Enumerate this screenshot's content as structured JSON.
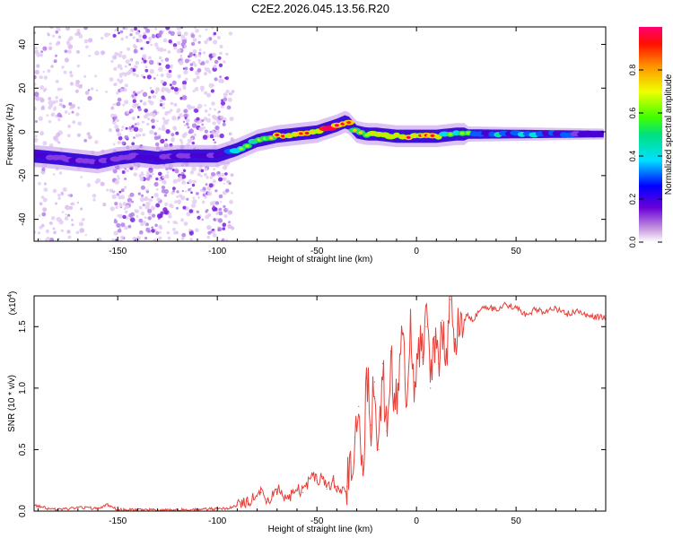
{
  "title": "C2E2.2026.045.13.56.R20",
  "chart_data": [
    {
      "type": "heatmap",
      "name": "spectrogram",
      "xlabel": "Height of straight line (km)",
      "ylabel": "Frequency (Hz)",
      "xlim": [
        -192,
        95
      ],
      "ylim": [
        -50,
        48
      ],
      "xticks": [
        -150,
        -100,
        -50,
        0,
        50
      ],
      "xtick_labels": [
        "-150",
        "-100",
        "-50",
        "0",
        "50"
      ],
      "yticks": [
        -40,
        -20,
        0,
        20,
        40
      ],
      "ytick_labels": [
        "-40",
        "-20",
        "0",
        "20",
        "40"
      ],
      "ridge": {
        "x": [
          -192,
          -180,
          -170,
          -160,
          -150,
          -140,
          -130,
          -120,
          -110,
          -100,
          -90,
          -80,
          -70,
          -60,
          -50,
          -40,
          -35,
          -30,
          -25,
          -20,
          -10,
          0,
          10,
          20,
          40,
          60,
          80,
          95
        ],
        "y": [
          -11,
          -12,
          -13,
          -14,
          -12,
          -11,
          -12,
          -11,
          -11,
          -11,
          -8,
          -4,
          -2,
          -1,
          0,
          3,
          5,
          0,
          -1,
          -1,
          -2,
          -2,
          -2,
          -1,
          -1,
          -1,
          -1,
          -1
        ],
        "amplitude": [
          0.3,
          0.35,
          0.35,
          0.4,
          0.3,
          0.25,
          0.3,
          0.3,
          0.3,
          0.35,
          0.55,
          0.7,
          0.85,
          0.85,
          0.9,
          0.95,
          1.0,
          0.8,
          0.85,
          0.9,
          0.8,
          0.85,
          0.75,
          0.6,
          0.5,
          0.45,
          0.4,
          0.35
        ]
      },
      "noise_region": [
        -192,
        -92
      ]
    },
    {
      "type": "colorbar",
      "name": "colorbar",
      "label": "Normalized spectral amplitude",
      "range": [
        0,
        1
      ],
      "ticks": [
        0.0,
        0.2,
        0.4,
        0.6,
        0.8
      ],
      "tick_labels": [
        "0.0",
        "0.2",
        "0.4",
        "0.6",
        "0.8"
      ]
    },
    {
      "type": "line",
      "name": "snr",
      "xlabel": "Height of straight line (km)",
      "ylabel": "SNR (10 * v/v)",
      "y_exponent_label": "(x10",
      "y_exponent": "4",
      "y_exponent_close": ")",
      "xlim": [
        -192,
        95
      ],
      "ylim": [
        0,
        1.75
      ],
      "xticks": [
        -150,
        -100,
        -50,
        0,
        50
      ],
      "xtick_labels": [
        "-150",
        "-100",
        "-50",
        "0",
        "50"
      ],
      "yticks": [
        0.0,
        0.5,
        1.0,
        1.5
      ],
      "ytick_labels": [
        "0.0",
        "0.5",
        "1.0",
        "1.5"
      ],
      "color": "#e8413a",
      "series": [
        {
          "name": "SNR",
          "x": [
            -192,
            -185,
            -180,
            -170,
            -160,
            -155,
            -150,
            -140,
            -130,
            -120,
            -110,
            -100,
            -95,
            -90,
            -85,
            -80,
            -78,
            -75,
            -72,
            -70,
            -65,
            -60,
            -57,
            -55,
            -52,
            -50,
            -47,
            -45,
            -42,
            -40,
            -38,
            -35,
            -33,
            -31,
            -29,
            -27,
            -25,
            -23,
            -21,
            -19,
            -17,
            -15,
            -13,
            -11,
            -9,
            -7,
            -5,
            -3,
            -1,
            1,
            3,
            5,
            7,
            9,
            11,
            13,
            15,
            17,
            19,
            21,
            23,
            25,
            28,
            31,
            35,
            40,
            45,
            50,
            55,
            60,
            65,
            70,
            75,
            80,
            85,
            90,
            95
          ],
          "y": [
            0.05,
            0.02,
            0.01,
            0.03,
            0.02,
            0.05,
            0.01,
            0.01,
            0.01,
            0.01,
            0.01,
            0.02,
            0.02,
            0.05,
            0.08,
            0.12,
            0.15,
            0.1,
            0.12,
            0.18,
            0.1,
            0.18,
            0.15,
            0.22,
            0.3,
            0.25,
            0.28,
            0.18,
            0.25,
            0.2,
            0.15,
            0.2,
            0.4,
            0.6,
            0.85,
            0.3,
            1.15,
            0.7,
            1.05,
            0.5,
            1.2,
            0.65,
            1.3,
            0.9,
            1.0,
            1.45,
            0.85,
            1.5,
            1.05,
            1.35,
            1.25,
            1.5,
            1.0,
            1.42,
            1.2,
            1.55,
            1.3,
            1.72,
            1.4,
            1.55,
            1.48,
            1.6,
            1.55,
            1.62,
            1.66,
            1.64,
            1.68,
            1.65,
            1.6,
            1.64,
            1.62,
            1.65,
            1.6,
            1.63,
            1.6,
            1.58,
            1.57
          ]
        }
      ]
    }
  ]
}
